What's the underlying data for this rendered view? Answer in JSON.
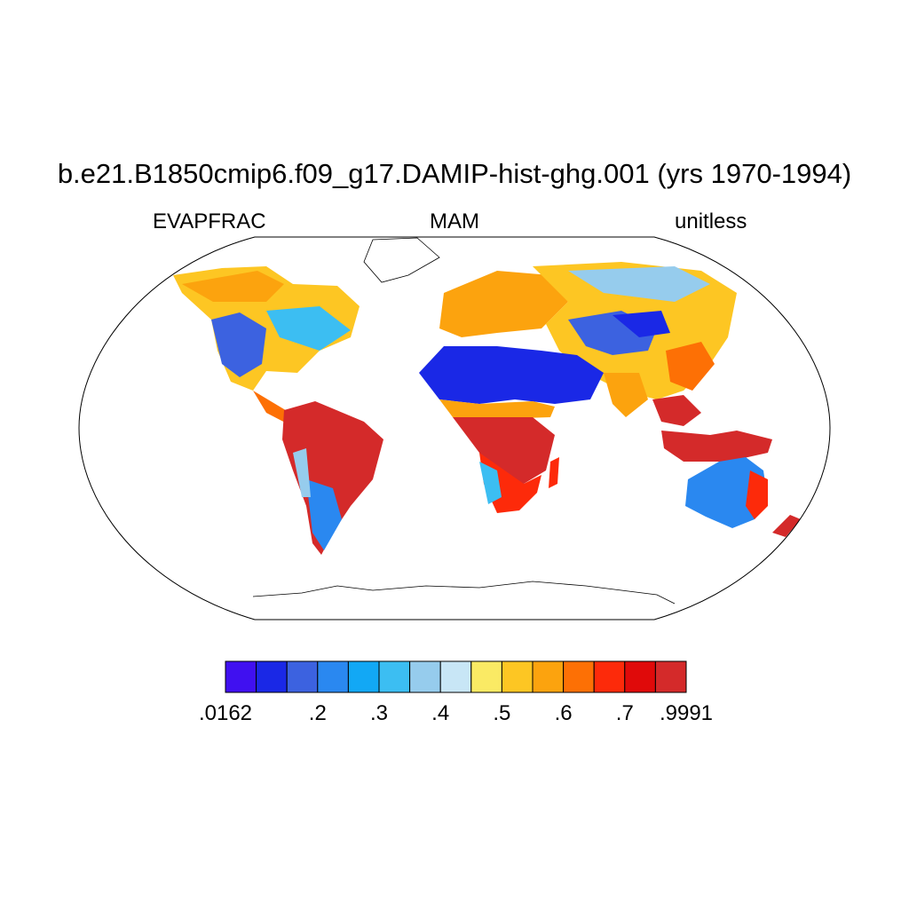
{
  "title": "b.e21.B1850cmip6.f09_g17.DAMIP-hist-ghg.001 (yrs 1970-1994)",
  "left_string": "EVAPFRAC",
  "center_string": "MAM",
  "right_string": "unitless",
  "colorbar": {
    "colors": [
      "#4010f0",
      "#1a28e6",
      "#3c62e0",
      "#2a88f0",
      "#12a8f5",
      "#3cbef2",
      "#96cced",
      "#c8e6f6",
      "#faea64",
      "#fdc623",
      "#fca30e",
      "#fd7005",
      "#fd2a0a",
      "#e00a0a",
      "#d42a2a"
    ],
    "labels": [
      ".0162",
      ".2",
      ".3",
      ".4",
      ".5",
      ".6",
      ".7",
      ".9991"
    ]
  }
}
